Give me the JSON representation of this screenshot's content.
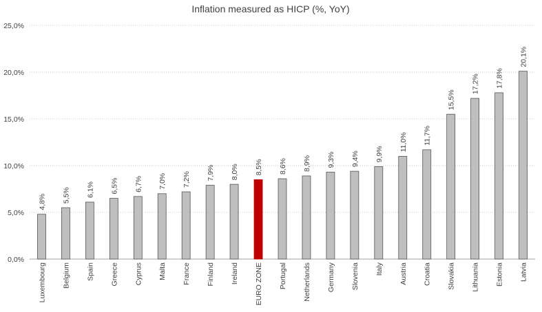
{
  "chart_data": {
    "type": "bar",
    "title": "Inflation measured as HICP (%, YoY)",
    "xlabel": "",
    "ylabel": "",
    "ylim": [
      0,
      25
    ],
    "yticks": [
      "0,0%",
      "5,0%",
      "10,0%",
      "15,0%",
      "20,0%",
      "25,0%"
    ],
    "grid": true,
    "categories": [
      "Luxembourg",
      "Belgium",
      "Spain",
      "Greece",
      "Cyprus",
      "Malta",
      "France",
      "Finland",
      "Ireland",
      "EURO ZONE",
      "Portugal",
      "Netherlands",
      "Germany",
      "Slovenia",
      "Italy",
      "Austria",
      "Croatia",
      "Slovakia",
      "Lithuania",
      "Estonia",
      "Latvia"
    ],
    "values": [
      4.8,
      5.5,
      6.1,
      6.5,
      6.7,
      7.0,
      7.2,
      7.9,
      8.0,
      8.5,
      8.6,
      8.9,
      9.3,
      9.4,
      9.9,
      11.0,
      11.7,
      15.5,
      17.2,
      17.8,
      20.1
    ],
    "data_labels": [
      "4,8%",
      "5,5%",
      "6,1%",
      "6,5%",
      "6,7%",
      "7,0%",
      "7,2%",
      "7,9%",
      "8,0%",
      "8,5%",
      "8,6%",
      "8,9%",
      "9,3%",
      "9,4%",
      "9,9%",
      "11,0%",
      "11,7%",
      "15,5%",
      "17,2%",
      "17,8%",
      "20,1%"
    ],
    "colors": {
      "default": "#bfbfbf",
      "highlight": "#c00000",
      "bar_stroke": "#555555"
    },
    "highlight_category": "EURO ZONE"
  }
}
